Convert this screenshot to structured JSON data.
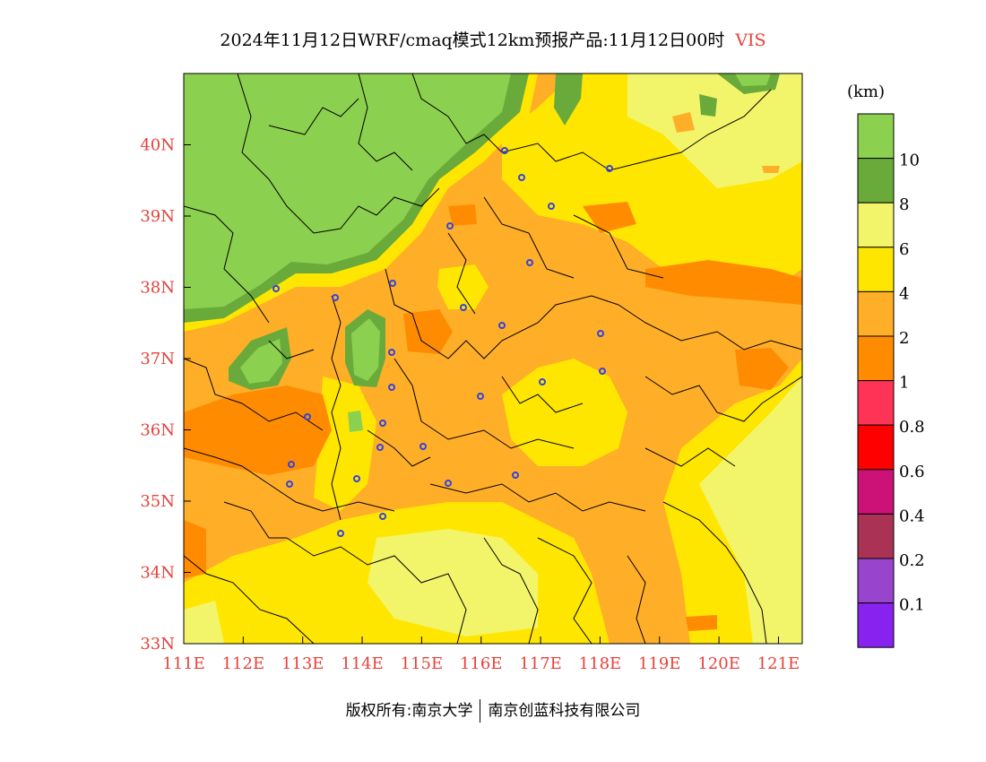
{
  "title": {
    "text": "2024年11月12日WRF/cmaq模式12km预报产品:11月12日00时",
    "variable": "VIS"
  },
  "map": {
    "lon_ticks": [
      "111E",
      "112E",
      "113E",
      "114E",
      "115E",
      "116E",
      "117E",
      "118E",
      "119E",
      "120E",
      "121E"
    ],
    "lat_ticks": [
      "33N",
      "34N",
      "35N",
      "36N",
      "37N",
      "38N",
      "39N",
      "40N"
    ],
    "lon_range": [
      111,
      121.4
    ],
    "lat_range": [
      33,
      41
    ]
  },
  "legend": {
    "unit": "(km)",
    "classes": [
      {
        "color": "#8cd050",
        "label": ""
      },
      {
        "color": "#6aaa3a",
        "label": "10"
      },
      {
        "color": "#f2f56a",
        "label": "8"
      },
      {
        "color": "#ffe600",
        "label": "6"
      },
      {
        "color": "#ffae28",
        "label": "4"
      },
      {
        "color": "#ff8c00",
        "label": "2"
      },
      {
        "color": "#ff3355",
        "label": "1"
      },
      {
        "color": "#ff0000",
        "label": "0.8"
      },
      {
        "color": "#cc1177",
        "label": "0.6"
      },
      {
        "color": "#aa3355",
        "label": "0.4"
      },
      {
        "color": "#9944cc",
        "label": "0.2"
      },
      {
        "color": "#8822ee",
        "label": "0.1"
      }
    ]
  },
  "footer": {
    "left": "版权所有:南京大学",
    "right": "南京创蓝科技有限公司"
  }
}
